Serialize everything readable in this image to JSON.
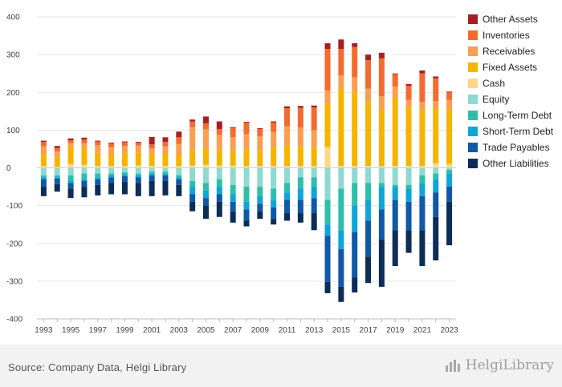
{
  "footer": {
    "source": "Source: Company Data, Helgi Library",
    "brand": "HelgiLibrary",
    "brand_icon": "bar-chart-logo-icon"
  },
  "chart_data": {
    "type": "bar",
    "stacked": true,
    "grid": true,
    "legend_position": "right",
    "ylim": [
      -400,
      400
    ],
    "yticks": [
      -400,
      -300,
      -200,
      -100,
      0,
      100,
      200,
      300,
      400
    ],
    "xtick_labels": [
      "1993",
      "1995",
      "1997",
      "1999",
      "2001",
      "2003",
      "2005",
      "2007",
      "2009",
      "2011",
      "2013",
      "2015",
      "2017",
      "2019",
      "2021",
      "2023"
    ],
    "categories": [
      "1993",
      "1994",
      "1995",
      "1996",
      "1997",
      "1998",
      "1999",
      "2000",
      "2001",
      "2002",
      "2003",
      "2004",
      "2005",
      "2006",
      "2007",
      "2008",
      "2009",
      "2010",
      "2011",
      "2012",
      "2013",
      "2014",
      "2015",
      "2016",
      "2017",
      "2018",
      "2019",
      "2020",
      "2021",
      "2022",
      "2023"
    ],
    "series": [
      {
        "name": "Cash",
        "side": "asset",
        "color": "#fcd78a",
        "values": [
          5,
          3,
          10,
          8,
          5,
          5,
          5,
          6,
          5,
          5,
          5,
          6,
          8,
          6,
          6,
          5,
          5,
          5,
          5,
          5,
          5,
          55,
          5,
          5,
          5,
          5,
          5,
          5,
          5,
          12,
          10
        ]
      },
      {
        "name": "Fixed Assets",
        "side": "asset",
        "color": "#f5b400",
        "values": [
          32,
          25,
          45,
          45,
          35,
          30,
          35,
          35,
          32,
          32,
          28,
          42,
          45,
          42,
          40,
          45,
          40,
          50,
          55,
          52,
          50,
          115,
          205,
          195,
          170,
          150,
          180,
          155,
          150,
          145,
          145
        ]
      },
      {
        "name": "Receivables",
        "side": "asset",
        "color": "#fc9e4f",
        "values": [
          20,
          15,
          10,
          12,
          20,
          20,
          18,
          18,
          15,
          20,
          30,
          60,
          50,
          40,
          35,
          40,
          38,
          40,
          50,
          50,
          45,
          35,
          35,
          40,
          35,
          35,
          30,
          20,
          20,
          20,
          25
        ]
      },
      {
        "name": "Inventories",
        "side": "asset",
        "color": "#f46b30",
        "values": [
          12,
          10,
          8,
          10,
          10,
          10,
          10,
          8,
          10,
          12,
          18,
          15,
          15,
          15,
          25,
          30,
          20,
          25,
          48,
          52,
          60,
          110,
          70,
          80,
          75,
          100,
          33,
          37,
          75,
          60,
          20
        ]
      },
      {
        "name": "Other Assets",
        "side": "asset",
        "color": "#a61f24",
        "values": [
          3,
          5,
          5,
          5,
          2,
          2,
          2,
          2,
          20,
          12,
          15,
          5,
          18,
          20,
          2,
          2,
          2,
          3,
          5,
          5,
          5,
          15,
          25,
          10,
          15,
          15,
          2,
          5,
          8,
          5,
          2
        ]
      },
      {
        "name": "Equity",
        "side": "liability",
        "color": "#8fd9d0",
        "values": [
          -20,
          -20,
          -20,
          -15,
          -15,
          -15,
          -12,
          -15,
          -10,
          -10,
          -20,
          -35,
          -40,
          -30,
          -45,
          -50,
          -50,
          -55,
          -40,
          -25,
          -25,
          -85,
          -55,
          -40,
          -40,
          -40,
          -45,
          -45,
          -20,
          -15,
          -5
        ]
      },
      {
        "name": "Long-Term Debt",
        "side": "liability",
        "color": "#2dbfaa",
        "values": [
          -5,
          -5,
          -15,
          -15,
          -10,
          -5,
          -5,
          -5,
          -5,
          -5,
          -5,
          -15,
          -20,
          -20,
          -25,
          -40,
          -25,
          -30,
          -25,
          -30,
          -25,
          -65,
          -110,
          -60,
          -45,
          -10,
          -5,
          -10,
          -20,
          -15,
          -10
        ]
      },
      {
        "name": "Short-Term Debt",
        "side": "liability",
        "color": "#0ea6d6",
        "values": [
          -5,
          -3,
          -5,
          -5,
          -5,
          -5,
          -5,
          -5,
          -5,
          -5,
          -5,
          -20,
          -20,
          -20,
          -20,
          -20,
          -20,
          -20,
          -20,
          -30,
          -30,
          -30,
          -50,
          -70,
          -55,
          -60,
          -35,
          -35,
          -35,
          -35,
          -35
        ]
      },
      {
        "name": "Trade Payables",
        "side": "liability",
        "color": "#1058a8",
        "values": [
          -20,
          -15,
          -15,
          -15,
          -15,
          -15,
          -15,
          -15,
          -15,
          -15,
          -15,
          -20,
          -20,
          -20,
          -25,
          -30,
          -20,
          -30,
          -35,
          -35,
          -40,
          -122,
          -100,
          -120,
          -95,
          -80,
          -80,
          -75,
          -90,
          -65,
          -40
        ]
      },
      {
        "name": "Other Liabilities",
        "side": "liability",
        "color": "#0c2d57",
        "values": [
          -25,
          -20,
          -25,
          -28,
          -28,
          -30,
          -33,
          -35,
          -40,
          -38,
          -30,
          -25,
          -35,
          -40,
          -30,
          -15,
          -20,
          -15,
          -20,
          -25,
          -45,
          -30,
          -40,
          -40,
          -70,
          -125,
          -95,
          -60,
          -95,
          -115,
          -115
        ]
      }
    ]
  },
  "legend_order": [
    "Other Assets",
    "Inventories",
    "Receivables",
    "Fixed Assets",
    "Cash",
    "Equity",
    "Long-Term Debt",
    "Short-Term Debt",
    "Trade Payables",
    "Other Liabilities"
  ]
}
